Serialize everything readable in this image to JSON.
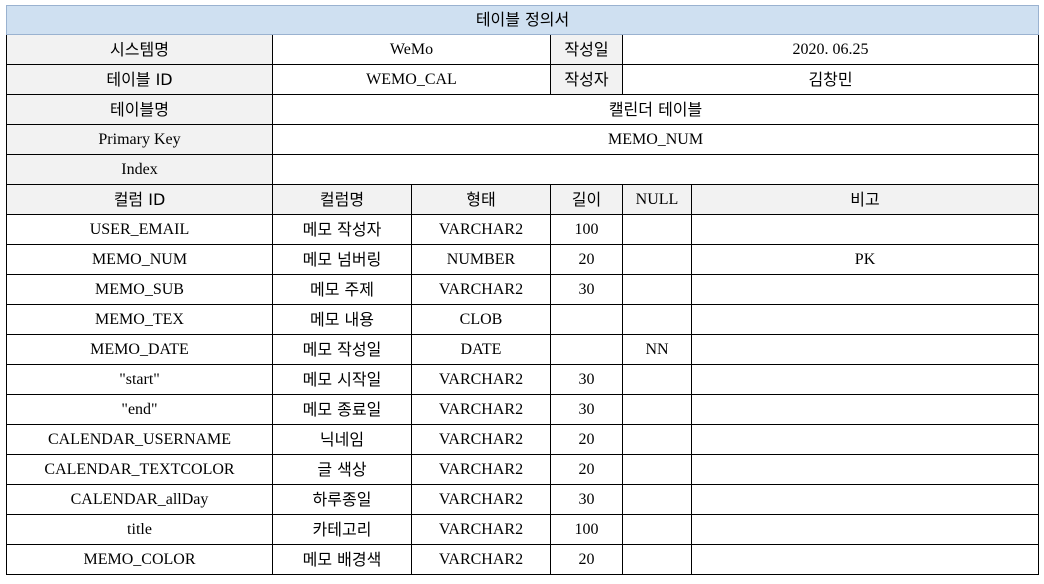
{
  "theme": {
    "title_bg": "#cfe0f1",
    "label_bg": "#f2f2f2",
    "border": "#000000"
  },
  "doc": {
    "title": "테이블 정의서",
    "system_label": "시스템명",
    "system_value": "WeMo",
    "date_label": "작성일",
    "date_value": "2020. 06.25",
    "table_id_label": "테이블 ID",
    "table_id_value": "WEMO_CAL",
    "author_label": "작성자",
    "author_value": "김창민",
    "table_name_label": "테이블명",
    "table_name_value": "캘린더 테이블",
    "pk_label": "Primary Key",
    "pk_value": "MEMO_NUM",
    "index_label": "Index",
    "index_value": ""
  },
  "columns": {
    "headers": [
      "컬럼 ID",
      "컬럼명",
      "형태",
      "길이",
      "NULL",
      "비고"
    ],
    "rows": [
      [
        "USER_EMAIL",
        "메모 작성자",
        "VARCHAR2",
        "100",
        "",
        ""
      ],
      [
        "MEMO_NUM",
        "메모 넘버링",
        "NUMBER",
        "20",
        "",
        "PK"
      ],
      [
        "MEMO_SUB",
        "메모 주제",
        "VARCHAR2",
        "30",
        "",
        ""
      ],
      [
        "MEMO_TEX",
        "메모 내용",
        "CLOB",
        "",
        "",
        ""
      ],
      [
        "MEMO_DATE",
        "메모 작성일",
        "DATE",
        "",
        "NN",
        ""
      ],
      [
        "\"start\"",
        "메모 시작일",
        "VARCHAR2",
        "30",
        "",
        ""
      ],
      [
        "\"end\"",
        "메모 종료일",
        "VARCHAR2",
        "30",
        "",
        ""
      ],
      [
        "CALENDAR_USERNAME",
        "닉네임",
        "VARCHAR2",
        "20",
        "",
        ""
      ],
      [
        "CALENDAR_TEXTCOLOR",
        "글 색상",
        "VARCHAR2",
        "20",
        "",
        ""
      ],
      [
        "CALENDAR_allDay",
        "하루종일",
        "VARCHAR2",
        "30",
        "",
        ""
      ],
      [
        "title",
        "카테고리",
        "VARCHAR2",
        "100",
        "",
        ""
      ],
      [
        "MEMO_COLOR",
        "메모 배경색",
        "VARCHAR2",
        "20",
        "",
        ""
      ]
    ]
  }
}
